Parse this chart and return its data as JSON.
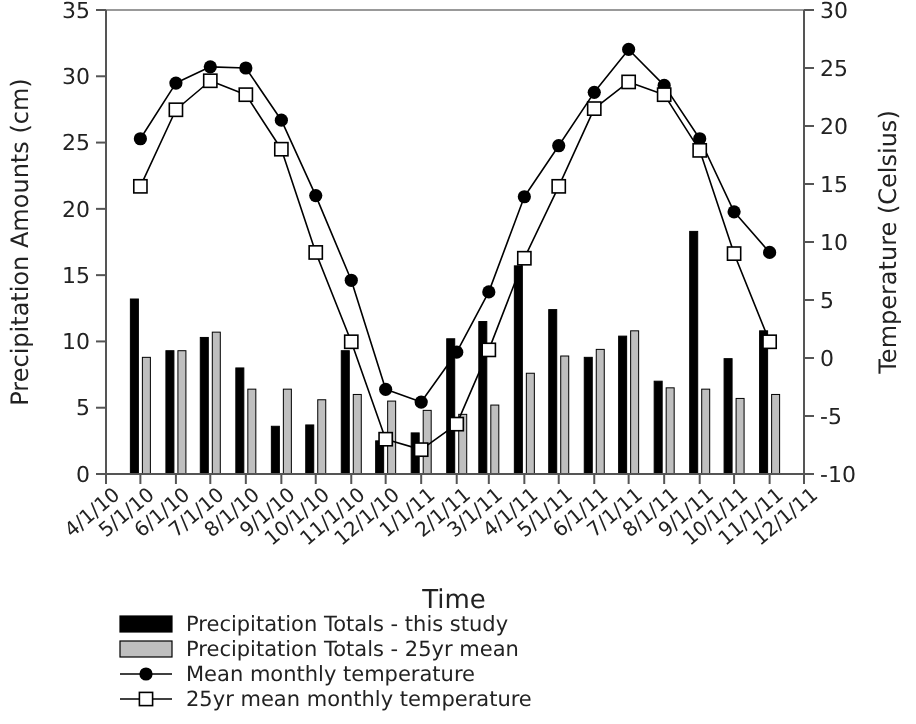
{
  "chart_data": {
    "type": "bar",
    "xlabel": "Time",
    "ylabel": "Precipitation Amounts (cm)",
    "y2label": "Temperature (Celsius)",
    "x": [
      "2010-05-01",
      "2010-06-01",
      "2010-07-01",
      "2010-08-01",
      "2010-09-01",
      "2010-10-01",
      "2010-11-01",
      "2010-12-01",
      "2011-01-01",
      "2011-02-01",
      "2011-03-01",
      "2011-04-01",
      "2011-05-01",
      "2011-06-01",
      "2011-07-01",
      "2011-08-01",
      "2011-09-01",
      "2011-10-01",
      "2011-11-01"
    ],
    "series": [
      {
        "name": "Precipitation Totals - this study",
        "color": "#000000",
        "values": [
          13.2,
          9.3,
          10.3,
          8.0,
          3.6,
          3.7,
          9.3,
          2.5,
          3.1,
          10.2,
          11.5,
          15.7,
          12.4,
          8.8,
          10.4,
          7.0,
          18.3,
          8.7,
          10.8
        ]
      },
      {
        "name": "Precipitation Totals - 25yr mean",
        "color": "#bfbfbf",
        "values": [
          8.8,
          9.3,
          10.7,
          6.4,
          6.4,
          5.6,
          6.0,
          5.5,
          4.8,
          4.5,
          5.2,
          7.6,
          8.9,
          9.4,
          10.8,
          6.5,
          6.4,
          5.7,
          6.0
        ]
      },
      {
        "name": "Mean monthly temperature",
        "type": "line",
        "axis": "y2",
        "marker": "circle",
        "color": "#000000",
        "values": [
          18.9,
          23.7,
          25.1,
          25.0,
          20.5,
          14.0,
          6.7,
          -2.7,
          -3.8,
          0.5,
          5.7,
          13.9,
          18.3,
          22.9,
          26.6,
          23.5,
          18.9,
          12.6,
          9.1
        ]
      },
      {
        "name": "25yr mean monthly temperature",
        "type": "line",
        "axis": "y2",
        "marker": "square",
        "color": "#000000",
        "values": [
          14.8,
          21.4,
          23.9,
          22.7,
          18.0,
          9.1,
          1.4,
          -7.0,
          -7.9,
          -5.7,
          0.7,
          8.6,
          14.8,
          21.5,
          23.8,
          22.7,
          17.9,
          9.0,
          1.4
        ]
      }
    ],
    "xlim": [
      "2010-04-01",
      "2011-12-01"
    ],
    "xticks": [
      {
        "value": "2010-04-01",
        "label": "4/1/10"
      },
      {
        "value": "2010-05-01",
        "label": "5/1/10"
      },
      {
        "value": "2010-06-01",
        "label": "6/1/10"
      },
      {
        "value": "2010-07-01",
        "label": "7/1/10"
      },
      {
        "value": "2010-08-01",
        "label": "8/1/10"
      },
      {
        "value": "2010-09-01",
        "label": "9/1/10"
      },
      {
        "value": "2010-10-01",
        "label": "10/1/10"
      },
      {
        "value": "2010-11-01",
        "label": "11/1/10"
      },
      {
        "value": "2010-12-01",
        "label": "12/1/10"
      },
      {
        "value": "2011-01-01",
        "label": "1/1/11"
      },
      {
        "value": "2011-02-01",
        "label": "2/1/11"
      },
      {
        "value": "2011-03-01",
        "label": "3/1/11"
      },
      {
        "value": "2011-04-01",
        "label": "4/1/11"
      },
      {
        "value": "2011-05-01",
        "label": "5/1/11"
      },
      {
        "value": "2011-06-01",
        "label": "6/1/11"
      },
      {
        "value": "2011-07-01",
        "label": "7/1/11"
      },
      {
        "value": "2011-08-01",
        "label": "8/1/11"
      },
      {
        "value": "2011-09-01",
        "label": "9/1/11"
      },
      {
        "value": "2011-10-01",
        "label": "10/1/11"
      },
      {
        "value": "2011-11-01",
        "label": "11/1/11"
      },
      {
        "value": "2011-12-01",
        "label": "12/1/11"
      }
    ],
    "ylim": [
      0,
      35
    ],
    "yticks": [
      0,
      5,
      10,
      15,
      20,
      25,
      30,
      35
    ],
    "y2lim": [
      -10,
      30
    ],
    "y2ticks": [
      -10,
      -5,
      0,
      5,
      10,
      15,
      20,
      25,
      30
    ],
    "grid": false,
    "legend": "bottom"
  }
}
